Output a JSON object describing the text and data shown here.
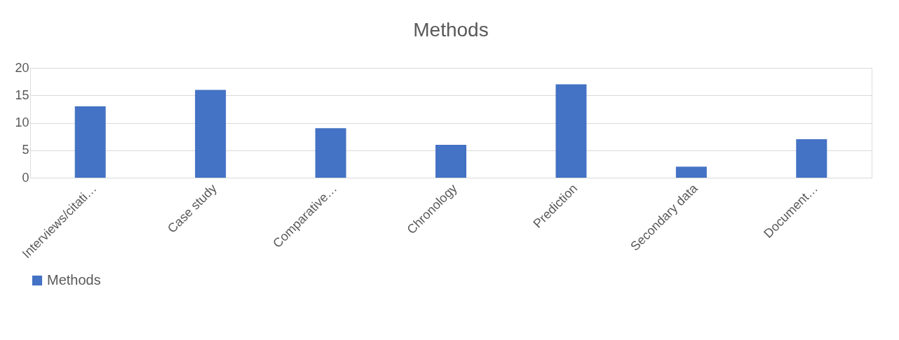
{
  "chart_data": {
    "type": "bar",
    "title": "Methods",
    "categories": [
      "Interviews/citati…",
      "Case study",
      "Comparative…",
      "Chronology",
      "Prediction",
      "Secondary data",
      "Document…"
    ],
    "series": [
      {
        "name": "Methods",
        "color": "#4472c4",
        "values": [
          13,
          16,
          9,
          6,
          17,
          2,
          7
        ]
      }
    ],
    "ylim": [
      0,
      20
    ],
    "yticks": [
      0,
      5,
      10,
      15,
      20
    ],
    "grid": "y",
    "legend": "bottom"
  }
}
